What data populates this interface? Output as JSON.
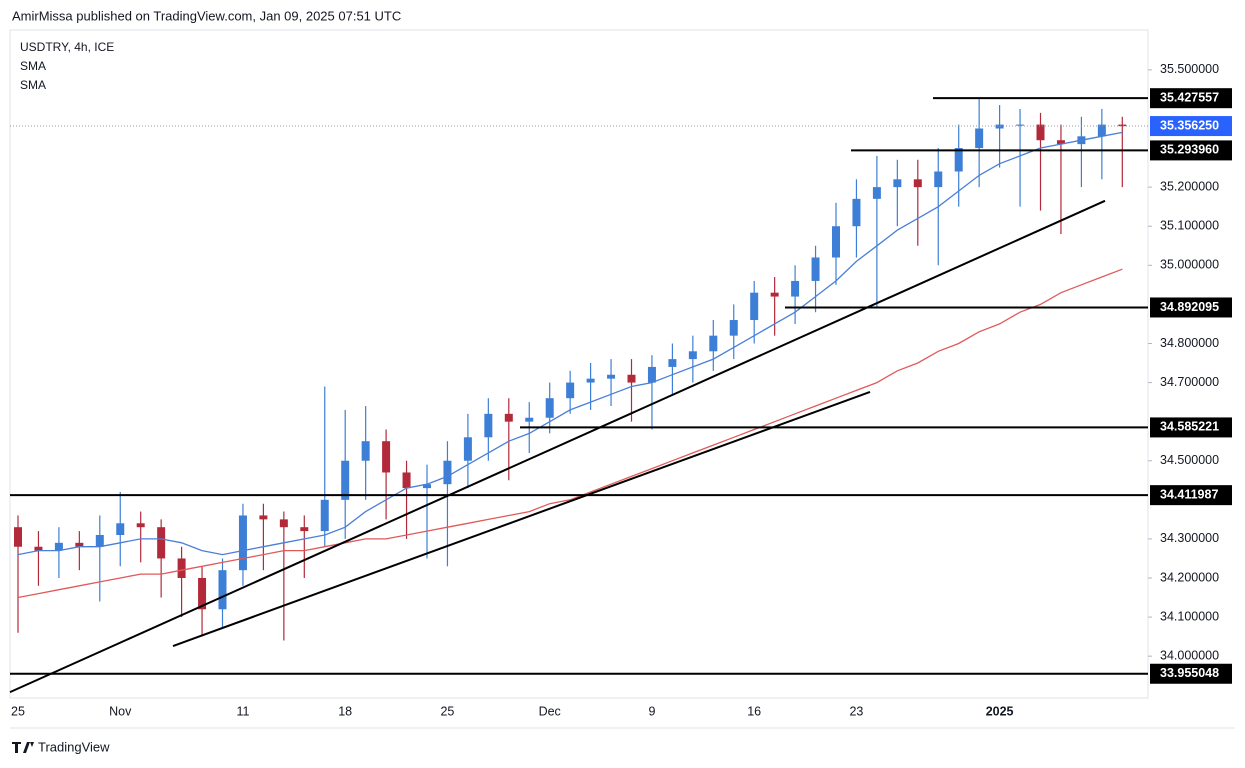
{
  "header": "AmirMissa published on TradingView.com, Jan 09, 2025 07:51 UTC",
  "footer": "TradingView",
  "chart_data": {
    "type": "candlestick",
    "legend": [
      "USDTRY, 4h, ICE",
      "SMA",
      "SMA"
    ],
    "categories": [
      "25",
      null,
      null,
      null,
      null,
      "Nov",
      null,
      null,
      null,
      null,
      null,
      "11",
      null,
      null,
      null,
      null,
      "18",
      null,
      null,
      null,
      null,
      "25",
      null,
      null,
      null,
      null,
      "Dec",
      null,
      null,
      null,
      null,
      "9",
      null,
      null,
      null,
      null,
      "16",
      null,
      null,
      null,
      null,
      "23",
      null,
      null,
      null,
      null,
      null,
      null,
      "2025",
      null,
      null,
      null,
      null,
      null,
      null
    ],
    "open": [
      34.33,
      34.28,
      34.27,
      34.29,
      34.28,
      34.31,
      34.34,
      34.33,
      34.25,
      34.2,
      34.12,
      34.22,
      34.36,
      34.35,
      34.33,
      34.32,
      34.4,
      34.5,
      34.55,
      34.47,
      34.43,
      34.44,
      34.5,
      34.56,
      34.62,
      34.6,
      34.61,
      34.66,
      34.7,
      34.71,
      34.72,
      34.7,
      34.74,
      34.76,
      34.78,
      34.82,
      34.86,
      34.93,
      34.92,
      34.96,
      35.02,
      35.1,
      35.17,
      35.2,
      35.22,
      35.2,
      35.24,
      35.3,
      35.35,
      35.36,
      35.36,
      35.32,
      35.31,
      35.33,
      35.36
    ],
    "high": [
      34.36,
      34.32,
      34.33,
      34.32,
      34.36,
      34.42,
      34.37,
      34.35,
      34.28,
      34.23,
      34.25,
      34.39,
      34.39,
      34.37,
      34.36,
      34.69,
      34.63,
      34.64,
      34.58,
      34.5,
      34.49,
      34.55,
      34.62,
      34.66,
      34.66,
      34.65,
      34.7,
      34.73,
      34.75,
      34.76,
      34.76,
      34.77,
      34.8,
      34.82,
      34.86,
      34.9,
      34.96,
      34.97,
      35.0,
      35.05,
      35.16,
      35.22,
      35.28,
      35.27,
      35.27,
      35.3,
      35.36,
      35.43,
      35.41,
      35.4,
      35.39,
      35.36,
      35.38,
      35.4,
      35.38
    ],
    "low": [
      34.06,
      34.18,
      34.2,
      34.22,
      34.14,
      34.23,
      34.24,
      34.15,
      34.1,
      34.05,
      34.07,
      34.18,
      34.22,
      34.04,
      34.2,
      34.28,
      34.3,
      34.4,
      34.35,
      34.3,
      34.25,
      34.23,
      34.43,
      34.5,
      34.45,
      34.52,
      34.57,
      34.62,
      34.63,
      34.64,
      34.6,
      34.58,
      34.67,
      34.7,
      34.73,
      34.76,
      34.8,
      34.82,
      34.85,
      34.88,
      34.95,
      35.02,
      34.89,
      35.1,
      35.05,
      35.0,
      35.15,
      35.2,
      35.25,
      35.15,
      35.14,
      35.08,
      35.2,
      35.22,
      35.2
    ],
    "close": [
      34.28,
      34.27,
      34.29,
      34.28,
      34.31,
      34.34,
      34.33,
      34.25,
      34.2,
      34.12,
      34.22,
      34.36,
      34.35,
      34.33,
      34.32,
      34.4,
      34.5,
      34.55,
      34.47,
      34.43,
      34.44,
      34.5,
      34.56,
      34.62,
      34.6,
      34.61,
      34.66,
      34.7,
      34.71,
      34.72,
      34.7,
      34.74,
      34.76,
      34.78,
      34.82,
      34.86,
      34.93,
      34.92,
      34.96,
      35.02,
      35.1,
      35.17,
      35.2,
      35.22,
      35.2,
      35.24,
      35.3,
      35.35,
      35.36,
      35.36,
      35.32,
      35.31,
      35.33,
      35.36,
      35.356
    ],
    "up_color": "#3d7fd6",
    "down_color": "#b22a3a",
    "series": [
      {
        "name": "SMA",
        "color": "#4a7fd8",
        "values": [
          34.26,
          34.27,
          34.27,
          34.28,
          34.28,
          34.29,
          34.3,
          34.3,
          34.29,
          34.27,
          34.26,
          34.27,
          34.28,
          34.29,
          34.3,
          34.31,
          34.33,
          34.37,
          34.4,
          34.43,
          34.44,
          34.46,
          34.49,
          34.52,
          34.55,
          34.57,
          34.6,
          34.63,
          34.65,
          34.67,
          34.69,
          34.7,
          34.72,
          34.74,
          34.76,
          34.79,
          34.82,
          34.85,
          34.88,
          34.92,
          34.96,
          35.01,
          35.05,
          35.09,
          35.12,
          35.15,
          35.19,
          35.23,
          35.26,
          35.28,
          35.3,
          35.31,
          35.32,
          35.33,
          35.34
        ]
      },
      {
        "name": "SMA",
        "color": "#e05a5a",
        "values": [
          34.15,
          34.16,
          34.17,
          34.18,
          34.19,
          34.2,
          34.21,
          34.21,
          34.22,
          34.23,
          34.24,
          34.25,
          34.26,
          34.27,
          34.27,
          34.28,
          34.29,
          34.3,
          34.3,
          34.31,
          34.32,
          34.33,
          34.34,
          34.35,
          34.36,
          34.37,
          34.39,
          34.4,
          34.42,
          34.44,
          34.46,
          34.48,
          34.5,
          34.52,
          34.54,
          34.56,
          34.58,
          34.6,
          34.62,
          34.64,
          34.66,
          34.68,
          34.7,
          34.73,
          34.75,
          34.78,
          34.8,
          34.83,
          34.85,
          34.88,
          34.9,
          34.93,
          34.95,
          34.97,
          34.99
        ]
      }
    ],
    "levels": [
      35.427557,
      {
        "value": 35.29396,
        "label": "35.293960"
      },
      34.892095,
      34.585221,
      34.411987,
      33.955048
    ],
    "last_price": {
      "value": 35.35625,
      "label": "35.356250"
    },
    "last_color": "#2962ff",
    "trendlines": [
      [
        33.908,
        35.165
      ],
      [
        34.026,
        34.676
      ]
    ],
    "ylim": [
      33.893,
      35.602
    ],
    "yticks": [
      {
        "value": 35.5,
        "label": "35.500000"
      },
      {
        "value": 35.2,
        "label": "35.200000"
      },
      {
        "value": 35.1,
        "label": "35.100000"
      },
      {
        "value": 35.0,
        "label": "35.000000"
      },
      {
        "value": 34.8,
        "label": "34.800000"
      },
      {
        "value": 34.7,
        "label": "34.700000"
      },
      {
        "value": 34.5,
        "label": "34.500000"
      },
      {
        "value": 34.3,
        "label": "34.300000"
      },
      {
        "value": 34.2,
        "label": "34.200000"
      },
      {
        "value": 34.1,
        "label": "34.100000"
      },
      {
        "value": 34.0,
        "label": "34.000000"
      }
    ]
  }
}
